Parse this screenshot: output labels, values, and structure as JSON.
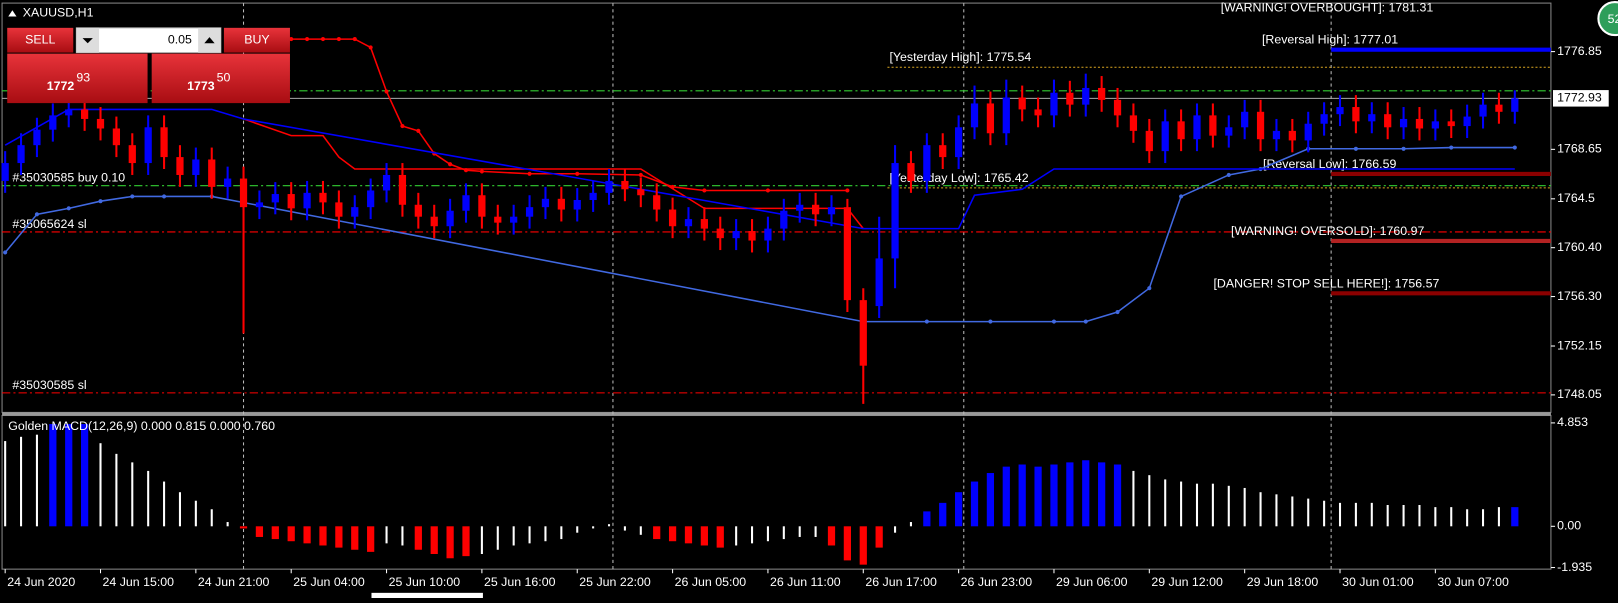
{
  "chart_data": {
    "type": "candlestick",
    "title": "XAUUSD,H1",
    "up_color": "#0000ff",
    "down_color": "#ff0000",
    "categories": [
      "24 Jun 2020",
      null,
      null,
      null,
      null,
      null,
      "24 Jun 15:00",
      null,
      null,
      null,
      null,
      null,
      "24 Jun 21:00",
      null,
      null,
      null,
      null,
      null,
      "25 Jun 04:00",
      null,
      null,
      null,
      null,
      null,
      "25 Jun 10:00",
      null,
      null,
      null,
      null,
      null,
      "25 Jun 16:00",
      null,
      null,
      null,
      null,
      null,
      "25 Jun 22:00",
      null,
      null,
      null,
      null,
      null,
      "26 Jun 05:00",
      null,
      null,
      null,
      null,
      null,
      "26 Jun 11:00",
      null,
      null,
      null,
      null,
      null,
      "26 Jun 17:00",
      null,
      null,
      null,
      null,
      null,
      "26 Jun 23:00",
      null,
      null,
      null,
      null,
      null,
      "29 Jun 06:00",
      null,
      null,
      null,
      null,
      null,
      "29 Jun 12:00",
      null,
      null,
      null,
      null,
      null,
      "29 Jun 18:00",
      null,
      null,
      null,
      null,
      null,
      "30 Jun 01:00",
      null,
      null,
      null,
      null,
      null,
      "30 Jun 07:00",
      null,
      null,
      null,
      null,
      null
    ],
    "open": [
      1766.0,
      1767.5,
      1769.0,
      1770.3,
      1771.5,
      1772.0,
      1771.2,
      1770.4,
      1769.0,
      1767.5,
      1770.5,
      1768.0,
      1766.5,
      1767.8,
      1765.5,
      1766.2,
      1763.8,
      1764.2,
      1764.9,
      1763.7,
      1765.0,
      1764.2,
      1763.0,
      1763.8,
      1765.2,
      1766.5,
      1764.0,
      1763.0,
      1762.2,
      1763.5,
      1764.8,
      1763.0,
      1762.5,
      1763.0,
      1763.8,
      1764.5,
      1763.6,
      1764.4,
      1765.0,
      1766.0,
      1765.3,
      1764.8,
      1763.6,
      1762.2,
      1762.8,
      1762.0,
      1761.2,
      1761.8,
      1761.0,
      1762.0,
      1763.5,
      1764.0,
      1763.2,
      1763.8,
      1756.0,
      1755.5,
      1759.5,
      1767.5,
      1766.0,
      1769.0,
      1768.0,
      1770.5,
      1772.5,
      1770.0,
      1773.0,
      1772.0,
      1771.5,
      1773.4,
      1772.4,
      1773.8,
      1772.8,
      1771.5,
      1770.2,
      1768.5,
      1771.0,
      1769.5,
      1771.5,
      1769.8,
      1770.5,
      1771.8,
      1769.5,
      1770.2,
      1769.4,
      1770.8,
      1771.6,
      1772.2,
      1771.0,
      1771.6,
      1770.5,
      1771.2,
      1770.4,
      1771.0,
      1770.6,
      1771.4,
      1772.4,
      1771.8
    ],
    "high": [
      1768.5,
      1770.0,
      1771.3,
      1772.5,
      1773.0,
      1773.0,
      1772.2,
      1771.4,
      1770.0,
      1771.5,
      1771.5,
      1769.0,
      1768.8,
      1768.8,
      1767.2,
      1767.2,
      1765.2,
      1765.9,
      1765.9,
      1766.0,
      1766.0,
      1765.2,
      1764.8,
      1766.2,
      1767.5,
      1767.5,
      1765.0,
      1764.0,
      1764.5,
      1765.8,
      1765.8,
      1764.0,
      1764.0,
      1764.8,
      1765.5,
      1765.5,
      1765.4,
      1766.0,
      1767.0,
      1767.0,
      1766.3,
      1765.8,
      1764.6,
      1763.8,
      1763.8,
      1763.0,
      1762.8,
      1762.8,
      1763.0,
      1764.5,
      1765.0,
      1765.0,
      1764.8,
      1764.5,
      1757.0,
      1763.0,
      1769.0,
      1768.5,
      1770.0,
      1770.0,
      1771.5,
      1774.0,
      1773.5,
      1774.5,
      1774.0,
      1773.0,
      1774.5,
      1774.4,
      1775.0,
      1774.8,
      1773.8,
      1772.5,
      1771.2,
      1772.0,
      1772.0,
      1772.5,
      1772.5,
      1771.5,
      1772.8,
      1772.8,
      1771.2,
      1771.2,
      1771.8,
      1772.6,
      1773.2,
      1773.2,
      1772.6,
      1772.6,
      1772.2,
      1772.2,
      1772.0,
      1772.0,
      1772.4,
      1773.4,
      1773.4,
      1773.6
    ],
    "low": [
      1765.0,
      1766.5,
      1768.0,
      1769.3,
      1770.5,
      1770.2,
      1769.4,
      1768.0,
      1766.5,
      1766.5,
      1767.0,
      1765.5,
      1765.5,
      1764.5,
      1764.5,
      1753.2,
      1762.8,
      1763.2,
      1762.7,
      1762.7,
      1763.2,
      1762.0,
      1762.0,
      1762.8,
      1764.2,
      1763.0,
      1762.0,
      1761.2,
      1761.2,
      1762.5,
      1762.0,
      1761.5,
      1761.5,
      1762.0,
      1762.8,
      1762.6,
      1762.6,
      1763.4,
      1764.0,
      1764.3,
      1763.8,
      1762.6,
      1761.2,
      1761.2,
      1761.0,
      1760.2,
      1760.2,
      1760.0,
      1760.0,
      1761.0,
      1762.5,
      1762.2,
      1762.2,
      1755.0,
      1747.3,
      1754.5,
      1757.0,
      1765.0,
      1765.0,
      1767.0,
      1767.0,
      1769.5,
      1769.0,
      1769.0,
      1771.0,
      1770.5,
      1770.5,
      1771.4,
      1771.4,
      1771.8,
      1770.5,
      1769.2,
      1767.5,
      1767.5,
      1768.5,
      1768.5,
      1768.8,
      1768.8,
      1769.5,
      1768.5,
      1768.5,
      1768.4,
      1768.4,
      1769.8,
      1770.6,
      1770.0,
      1770.0,
      1769.5,
      1769.5,
      1769.4,
      1769.4,
      1769.6,
      1769.6,
      1770.4,
      1770.8,
      1770.8
    ],
    "close": [
      1767.5,
      1769.0,
      1770.3,
      1771.5,
      1772.0,
      1771.2,
      1770.4,
      1769.0,
      1767.5,
      1770.5,
      1768.0,
      1766.5,
      1767.8,
      1765.5,
      1766.2,
      1763.8,
      1764.2,
      1764.9,
      1763.7,
      1765.0,
      1764.2,
      1763.0,
      1763.8,
      1765.2,
      1766.5,
      1764.0,
      1763.0,
      1762.2,
      1763.5,
      1764.8,
      1763.0,
      1762.5,
      1763.0,
      1763.8,
      1764.5,
      1763.6,
      1764.4,
      1765.0,
      1766.0,
      1765.3,
      1764.8,
      1763.6,
      1762.2,
      1762.8,
      1762.0,
      1761.2,
      1761.8,
      1761.0,
      1762.0,
      1763.5,
      1764.0,
      1763.2,
      1763.8,
      1756.0,
      1750.5,
      1759.5,
      1767.5,
      1766.0,
      1769.0,
      1768.0,
      1770.5,
      1772.5,
      1770.0,
      1773.0,
      1772.0,
      1771.5,
      1773.4,
      1772.4,
      1773.8,
      1772.8,
      1771.5,
      1770.2,
      1768.5,
      1771.0,
      1769.5,
      1771.5,
      1769.8,
      1770.5,
      1771.8,
      1769.5,
      1770.2,
      1769.4,
      1770.8,
      1771.6,
      1772.2,
      1771.0,
      1771.6,
      1770.5,
      1771.2,
      1770.4,
      1771.0,
      1770.6,
      1771.4,
      1772.4,
      1771.8,
      1772.93
    ],
    "ylim": [
      1746.58,
      1780.92
    ],
    "yticks": [
      1776.85,
      1768.65,
      1764.5,
      {
        "value": 1760.4,
        "label": "1760.40"
      },
      {
        "value": 1756.3,
        "label": "1756.30"
      },
      1752.15,
      1748.05
    ],
    "last_price": 1772.93,
    "indicators": [
      {
        "color": "#ff0000",
        "dotted": true,
        "x": [
          18,
          19,
          20,
          21,
          22,
          23,
          24,
          25,
          26,
          27,
          28,
          29,
          30,
          33,
          36,
          40,
          42,
          44,
          48,
          53
        ],
        "values": [
          1777.9,
          1777.9,
          1777.9,
          1777.9,
          1777.9,
          1777.2,
          1773.5,
          1770.6,
          1770.2,
          1768.3,
          1767.4,
          1766.9,
          1766.8,
          1766.6,
          1766.6,
          1766.5,
          1765.5,
          1765.2,
          1765.2,
          1765.2
        ]
      },
      {
        "color": "#ff0000",
        "dotted": false,
        "x": [
          15,
          18,
          20,
          21,
          22,
          27,
          40,
          44,
          53,
          54
        ],
        "values": [
          1771.2,
          1769.8,
          1769.8,
          1768.0,
          1767.0,
          1767.0,
          1767.0,
          1763.7,
          1763.7,
          1762.0
        ]
      },
      {
        "color": "#4169e1",
        "dotted": true,
        "x": [
          0,
          2,
          4,
          6,
          8,
          10,
          13,
          54,
          58,
          62,
          66,
          68,
          70,
          72,
          74,
          77,
          79,
          82,
          85,
          88,
          91,
          95
        ],
        "values": [
          1760.0,
          1763.2,
          1763.7,
          1764.3,
          1764.7,
          1764.7,
          1764.7,
          1754.2,
          1754.2,
          1754.2,
          1754.2,
          1754.2,
          1755.0,
          1757.0,
          1764.7,
          1766.5,
          1767.0,
          1768.7,
          1768.7,
          1768.7,
          1768.8,
          1768.8
        ]
      },
      {
        "color": "#0000ff",
        "dotted": false,
        "x": [
          0,
          4,
          13,
          15,
          54,
          60,
          61,
          64,
          66,
          95
        ],
        "values": [
          1769.0,
          1772.0,
          1772.0,
          1771.2,
          1762.0,
          1762.0,
          1764.8,
          1765.3,
          1767.0,
          1767.0
        ]
      }
    ],
    "order_lines": [
      {
        "value": 1773.56,
        "color": "#32cd32"
      },
      {
        "label": "#35030585 buy 0.10",
        "value": 1765.6,
        "color": "#32cd32"
      },
      {
        "label": "#35065624 sl",
        "value": 1761.72,
        "color": "#ff0000"
      },
      {
        "label": "#35030585 sl",
        "value": 1748.22,
        "color": "#ff0000"
      }
    ],
    "levels": [
      {
        "label": "[WARNING! OVERBOUGHT]: 1781.31",
        "value": 1781.31,
        "color": "#8b0000"
      },
      {
        "label": "[Reversal High]: 1777.01",
        "value": 1777.01,
        "color": "#0000ff"
      },
      {
        "label": "[Yesterday High]: 1775.54",
        "value": 1775.54,
        "color": "#daa520"
      },
      {
        "label": "[Reversal Low]: 1766.59",
        "value": 1766.59,
        "color": "#8b0000"
      },
      {
        "label": "[Yesterday Low]: 1765.42",
        "value": 1765.42,
        "color": "#daa520"
      },
      {
        "label": "[WARNING! OVERSOLD]: 1760.97",
        "value": 1760.97,
        "color": "#b22222"
      },
      {
        "label": "[DANGER! STOP SELL HERE!]: 1756.57",
        "value": 1756.57,
        "color": "#8b0000"
      }
    ],
    "macd": {
      "title": "Golden MACD(12,26,9) 0.000 0.815 0.000 0.760",
      "ylim": [
        -2.01,
        5.2
      ],
      "yticks": [
        4.853,
        {
          "value": 0,
          "label": "0.00"
        },
        -1.935
      ],
      "values": [
        4.0,
        4.2,
        4.3,
        4.8,
        4.8,
        4.8,
        3.9,
        3.4,
        3.0,
        2.6,
        2.1,
        1.6,
        1.2,
        0.8,
        0.2,
        -0.1,
        -0.5,
        -0.6,
        -0.7,
        -0.8,
        -0.9,
        -1.0,
        -1.1,
        -1.2,
        -0.8,
        -0.9,
        -1.1,
        -1.3,
        -1.5,
        -1.4,
        -1.3,
        -1.1,
        -0.9,
        -0.8,
        -0.7,
        -0.6,
        -0.3,
        -0.1,
        0.1,
        -0.2,
        -0.4,
        -0.6,
        -0.7,
        -0.8,
        -0.9,
        -1.0,
        -0.9,
        -0.8,
        -0.7,
        -0.6,
        -0.5,
        -0.5,
        -0.9,
        -1.6,
        -1.8,
        -1.0,
        -0.3,
        0.2,
        0.7,
        1.1,
        1.6,
        2.1,
        2.5,
        2.8,
        2.9,
        2.8,
        2.9,
        3.0,
        3.1,
        3.0,
        2.9,
        2.6,
        2.4,
        2.2,
        2.1,
        2.0,
        2.0,
        1.9,
        1.8,
        1.6,
        1.5,
        1.4,
        1.3,
        1.2,
        1.1,
        1.1,
        1.1,
        1.0,
        1.0,
        1.0,
        0.9,
        0.9,
        0.8,
        0.8,
        0.9,
        0.9
      ],
      "colors": [
        "#ffffff",
        "#ffffff",
        "#ffffff",
        "#0000ff",
        "#0000ff",
        "#0000ff",
        "#ffffff",
        "#ffffff",
        "#ffffff",
        "#ffffff",
        "#ffffff",
        "#ffffff",
        "#ffffff",
        "#ffffff",
        "#ffffff",
        "#ff0000",
        "#ff0000",
        "#ff0000",
        "#ff0000",
        "#ff0000",
        "#ff0000",
        "#ff0000",
        "#ff0000",
        "#ff0000",
        "#ffffff",
        "#ffffff",
        "#ff0000",
        "#ff0000",
        "#ff0000",
        "#ff0000",
        "#ffffff",
        "#ffffff",
        "#ffffff",
        "#ffffff",
        "#ffffff",
        "#ffffff",
        "#ffffff",
        "#ffffff",
        "#ffffff",
        "#ffffff",
        "#ffffff",
        "#ff0000",
        "#ff0000",
        "#ff0000",
        "#ff0000",
        "#ff0000",
        "#ffffff",
        "#ffffff",
        "#ffffff",
        "#ffffff",
        "#ffffff",
        "#ffffff",
        "#ff0000",
        "#ff0000",
        "#ff0000",
        "#ff0000",
        "#ffffff",
        "#ffffff",
        "#0000ff",
        "#0000ff",
        "#0000ff",
        "#0000ff",
        "#0000ff",
        "#0000ff",
        "#0000ff",
        "#0000ff",
        "#0000ff",
        "#0000ff",
        "#0000ff",
        "#0000ff",
        "#0000ff",
        "#ffffff",
        "#ffffff",
        "#ffffff",
        "#ffffff",
        "#ffffff",
        "#ffffff",
        "#ffffff",
        "#ffffff",
        "#ffffff",
        "#ffffff",
        "#ffffff",
        "#ffffff",
        "#ffffff",
        "#ffffff",
        "#ffffff",
        "#ffffff",
        "#ffffff",
        "#ffffff",
        "#ffffff",
        "#ffffff",
        "#ffffff",
        "#ffffff",
        "#ffffff",
        "#ffffff",
        "#0000ff"
      ]
    },
    "trade_panel": {
      "sell": "SELL",
      "buy": "BUY",
      "lot": "0.05",
      "bid_head": "1772",
      "bid_tail": "93",
      "ask_head": "1773",
      "ask_tail": "50"
    },
    "badge": "52"
  }
}
